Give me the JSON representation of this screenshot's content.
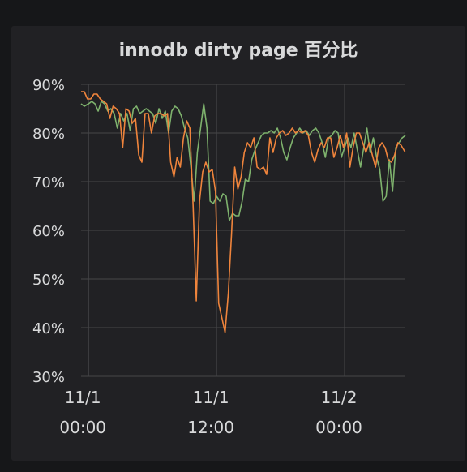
{
  "title": "innodb dirty page 百分比",
  "colors": {
    "series_1": "#7eb26d",
    "series_2": "#ef843c",
    "grid": "#464649",
    "text": "#d8d9da"
  },
  "chart_data": {
    "type": "line",
    "title": "innodb dirty page 百分比",
    "y_tick_labels": [
      "30%",
      "40%",
      "50%",
      "60%",
      "70%",
      "80%",
      "90%"
    ],
    "ylim": [
      30,
      90
    ],
    "x_tick_labels": [
      {
        "date": "11/1",
        "time": "00:00",
        "hour": 0
      },
      {
        "date": "11/1",
        "time": "12:00",
        "hour": 12
      },
      {
        "date": "11/2",
        "time": "00:00",
        "hour": 24
      }
    ],
    "xlim_hours": [
      -0.7,
      29.7
    ],
    "grid": true,
    "legend": "none",
    "series": [
      {
        "color": "#7eb26d",
        "x": [
          -0.7,
          -0.4,
          0.0,
          0.3,
          0.6,
          0.9,
          1.2,
          1.5,
          1.8,
          2.1,
          2.4,
          2.7,
          3.0,
          3.3,
          3.6,
          3.9,
          4.2,
          4.5,
          4.8,
          5.1,
          5.4,
          5.7,
          6.0,
          6.3,
          6.6,
          6.9,
          7.2,
          7.5,
          7.8,
          8.1,
          8.4,
          8.7,
          9.0,
          9.3,
          9.6,
          9.9,
          10.2,
          10.5,
          10.8,
          11.1,
          11.4,
          11.7,
          12.0,
          12.3,
          12.6,
          12.9,
          13.2,
          13.5,
          13.8,
          14.1,
          14.4,
          14.7,
          15.0,
          15.3,
          15.6,
          15.9,
          16.2,
          16.5,
          16.8,
          17.1,
          17.4,
          17.7,
          18.0,
          18.3,
          18.6,
          18.9,
          19.2,
          19.5,
          19.8,
          20.1,
          20.4,
          20.7,
          21.0,
          21.3,
          21.6,
          21.9,
          22.2,
          22.5,
          22.8,
          23.1,
          23.4,
          23.7,
          24.0,
          24.3,
          24.6,
          24.9,
          25.2,
          25.5,
          25.8,
          26.1,
          26.4,
          26.7,
          27.0,
          27.3,
          27.6,
          27.9,
          28.2,
          28.5,
          28.8,
          29.1,
          29.4,
          29.7
        ],
        "values": [
          86,
          85.5,
          86,
          86.5,
          86,
          84.5,
          86.5,
          86,
          84.5,
          85,
          84,
          81,
          84,
          82.5,
          84,
          80.5,
          85,
          85.5,
          84,
          84.5,
          85,
          84.5,
          84,
          82,
          85,
          83,
          84.5,
          80,
          84.5,
          85.5,
          85,
          83.5,
          81,
          79,
          73,
          66,
          76,
          81,
          86,
          81,
          66,
          65.5,
          67,
          66,
          67.5,
          67,
          62,
          63.5,
          63,
          63,
          66,
          70.5,
          70,
          74.5,
          76.5,
          78,
          79.5,
          80,
          80,
          80.5,
          80,
          81,
          79,
          76,
          74.5,
          77,
          79,
          80,
          81,
          80,
          80.5,
          79.5,
          80.5,
          81,
          80,
          78,
          75,
          79,
          79.5,
          80.5,
          80,
          75,
          77,
          79,
          77,
          80,
          76.5,
          73,
          77,
          81,
          76,
          79,
          75,
          72.5,
          66,
          67,
          74.5,
          68,
          77,
          78,
          79,
          79.5
        ]
      },
      {
        "color": "#ef843c",
        "x": [
          -0.7,
          -0.4,
          -0.1,
          0.2,
          0.5,
          0.8,
          1.1,
          1.4,
          1.7,
          2.0,
          2.3,
          2.6,
          2.9,
          3.2,
          3.5,
          3.8,
          4.1,
          4.4,
          4.7,
          5.0,
          5.3,
          5.6,
          5.9,
          6.2,
          6.5,
          6.8,
          7.1,
          7.4,
          7.7,
          8.0,
          8.3,
          8.6,
          8.9,
          9.2,
          9.5,
          9.8,
          10.1,
          10.4,
          10.7,
          11.0,
          11.3,
          11.6,
          11.9,
          12.2,
          12.5,
          12.8,
          13.1,
          13.4,
          13.7,
          14.0,
          14.3,
          14.6,
          14.9,
          15.2,
          15.5,
          15.8,
          16.1,
          16.4,
          16.7,
          17.0,
          17.3,
          17.6,
          17.9,
          18.2,
          18.5,
          18.8,
          19.1,
          19.4,
          19.7,
          20.0,
          20.3,
          20.6,
          20.9,
          21.2,
          21.5,
          21.8,
          22.1,
          22.4,
          22.7,
          23.0,
          23.3,
          23.6,
          23.9,
          24.2,
          24.5,
          24.8,
          25.1,
          25.4,
          25.7,
          26.0,
          26.3,
          26.6,
          26.9,
          27.2,
          27.5,
          27.8,
          28.1,
          28.4,
          28.7,
          29.0,
          29.3,
          29.7
        ],
        "values": [
          88.5,
          88.5,
          87,
          87,
          88,
          88,
          87,
          86.5,
          86,
          83,
          85.5,
          85,
          84,
          77,
          85,
          84.5,
          82,
          83,
          75.5,
          74,
          84,
          84,
          80,
          83.5,
          84,
          84,
          83.5,
          84,
          74,
          71,
          75,
          73,
          79,
          82.5,
          81,
          65,
          45.5,
          66,
          72,
          74,
          72,
          72.5,
          68,
          45,
          42,
          39,
          47,
          59,
          73,
          68.5,
          71,
          76,
          78,
          77,
          79,
          73,
          72.5,
          73,
          71.5,
          79,
          76,
          79,
          80,
          80.5,
          79.5,
          80,
          81,
          80,
          80.5,
          80,
          80.5,
          79.5,
          76,
          74,
          76.5,
          78,
          77,
          79,
          79,
          75,
          77,
          79.5,
          77,
          80,
          73,
          77,
          80,
          80,
          78,
          76,
          78,
          75.5,
          73,
          77,
          78,
          77,
          74.5,
          74,
          75.5,
          78,
          77.5,
          76
        ]
      }
    ]
  }
}
